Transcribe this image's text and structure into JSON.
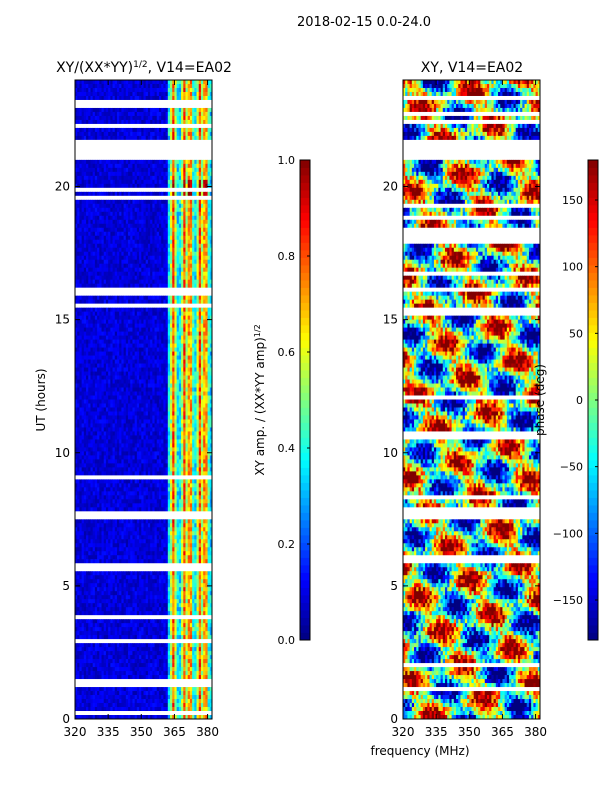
{
  "figure": {
    "suptitle": "2018-02-15 0.0-24.0",
    "shared_xlabel": "frequency (MHz)"
  },
  "chart_data": [
    {
      "type": "heatmap",
      "title": "XY/(XX*YY)",
      "title_exponent": "1/2",
      "title_suffix": ", V14=EA02",
      "xlabel": "",
      "ylabel": "UT (hours)",
      "xlim": [
        320,
        382
      ],
      "ylim": [
        0,
        24
      ],
      "xticks": [
        {
          "value": 320,
          "label": "320"
        },
        {
          "value": 335,
          "label": "335"
        },
        {
          "value": 350,
          "label": "350"
        },
        {
          "value": 365,
          "label": "365"
        },
        {
          "value": 380,
          "label": "380"
        }
      ],
      "yticks": [
        {
          "value": 0,
          "label": "0"
        },
        {
          "value": 5,
          "label": "5"
        },
        {
          "value": 10,
          "label": "10"
        },
        {
          "value": 15,
          "label": "15"
        },
        {
          "value": 20,
          "label": "20"
        }
      ],
      "colormap": "jet",
      "colorbar": {
        "label": "XY amp. / (XX*YY amp)",
        "label_exponent": "1/2",
        "range": [
          0.0,
          1.0
        ],
        "ticks": [
          {
            "value": 0.0,
            "label": "0.0"
          },
          {
            "value": 0.2,
            "label": "0.2"
          },
          {
            "value": 0.4,
            "label": "0.4"
          },
          {
            "value": 0.6,
            "label": "0.6"
          },
          {
            "value": 0.8,
            "label": "0.8"
          },
          {
            "value": 1.0,
            "label": "1.0"
          }
        ]
      },
      "blank_hours": [
        [
          0.2,
          0.35
        ],
        [
          5.5,
          5.9
        ],
        [
          6.1,
          6.2
        ],
        [
          7.5,
          7.8
        ],
        [
          15.4,
          15.6
        ],
        [
          15.9,
          16.2
        ],
        [
          21.0,
          21.7
        ],
        [
          22.2,
          22.3
        ],
        [
          23.0,
          23.2
        ]
      ]
    },
    {
      "type": "heatmap",
      "title": "XY",
      "title_exponent": "",
      "title_suffix": ", V14=EA02",
      "xlabel": "",
      "ylabel": "",
      "xlim": [
        320,
        382
      ],
      "ylim": [
        0,
        24
      ],
      "xticks": [
        {
          "value": 320,
          "label": "320"
        },
        {
          "value": 335,
          "label": "335"
        },
        {
          "value": 350,
          "label": "350"
        },
        {
          "value": 365,
          "label": "365"
        },
        {
          "value": 380,
          "label": "380"
        }
      ],
      "yticks": [
        {
          "value": 0,
          "label": "0"
        },
        {
          "value": 5,
          "label": "5"
        },
        {
          "value": 10,
          "label": "10"
        },
        {
          "value": 15,
          "label": "15"
        },
        {
          "value": 20,
          "label": "20"
        }
      ],
      "colormap": "jet",
      "colorbar": {
        "label": "phase (deg)",
        "label_exponent": "",
        "range": [
          -180,
          180
        ],
        "ticks": [
          {
            "value": -150,
            "label": "−150"
          },
          {
            "value": -100,
            "label": "−100"
          },
          {
            "value": -50,
            "label": "−50"
          },
          {
            "value": 0,
            "label": "0"
          },
          {
            "value": 50,
            "label": "50"
          },
          {
            "value": 100,
            "label": "100"
          },
          {
            "value": 150,
            "label": "150"
          }
        ]
      },
      "blank_hours": [
        [
          5.9,
          6.1
        ],
        [
          7.5,
          7.8
        ],
        [
          15.2,
          15.5
        ],
        [
          17.9,
          18.4
        ],
        [
          21.0,
          21.7
        ],
        [
          22.3,
          22.5
        ],
        [
          23.2,
          23.4
        ]
      ]
    }
  ]
}
